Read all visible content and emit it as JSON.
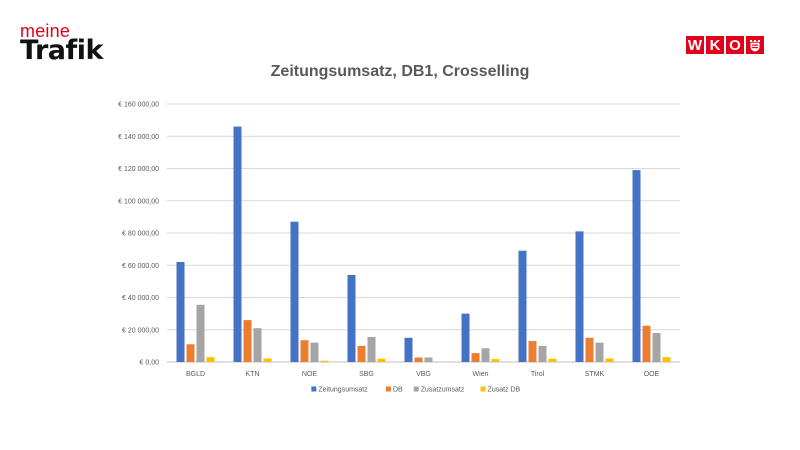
{
  "logo": {
    "meine": "meine",
    "trafik": "Trafik",
    "wko_letters": [
      "W",
      "K",
      "O"
    ]
  },
  "chart_data": {
    "type": "bar",
    "title": "Zeitungsumsatz, DB1, Crosselling",
    "xlabel": "",
    "ylabel": "",
    "categories": [
      "BGLD",
      "KTN",
      "NOE",
      "SBG",
      "VBG",
      "Wien",
      "Tirol",
      "STMK",
      "OOE"
    ],
    "series": [
      {
        "name": "Zeitungsumsatz",
        "color": "#4472c4",
        "values": [
          62000,
          146000,
          87000,
          54000,
          15000,
          30000,
          69000,
          81000,
          119000
        ]
      },
      {
        "name": "DB",
        "color": "#ed7d31",
        "values": [
          11000,
          26000,
          13500,
          10000,
          2800,
          5500,
          13000,
          15000,
          22500
        ]
      },
      {
        "name": "Zusatzumsatz",
        "color": "#a5a5a5",
        "values": [
          35500,
          21000,
          12000,
          15500,
          2800,
          8500,
          10000,
          12000,
          18000
        ]
      },
      {
        "name": "Zusatz DB",
        "color": "#ffc000",
        "values": [
          3000,
          2200,
          800,
          2000,
          0,
          1800,
          2000,
          2200,
          3000
        ]
      }
    ],
    "ylim": [
      0,
      160000
    ],
    "yticks": [
      0,
      20000,
      40000,
      60000,
      80000,
      100000,
      120000,
      140000,
      160000
    ],
    "ytick_labels": [
      "€ 0,00",
      "€ 20 000,00",
      "€ 40 000,00",
      "€ 60 000,00",
      "€ 80 000,00",
      "€ 100 000,00",
      "€ 120 000,00",
      "€ 140 000,00",
      "€ 160 000,00"
    ],
    "grid": true,
    "legend_position": "bottom"
  }
}
